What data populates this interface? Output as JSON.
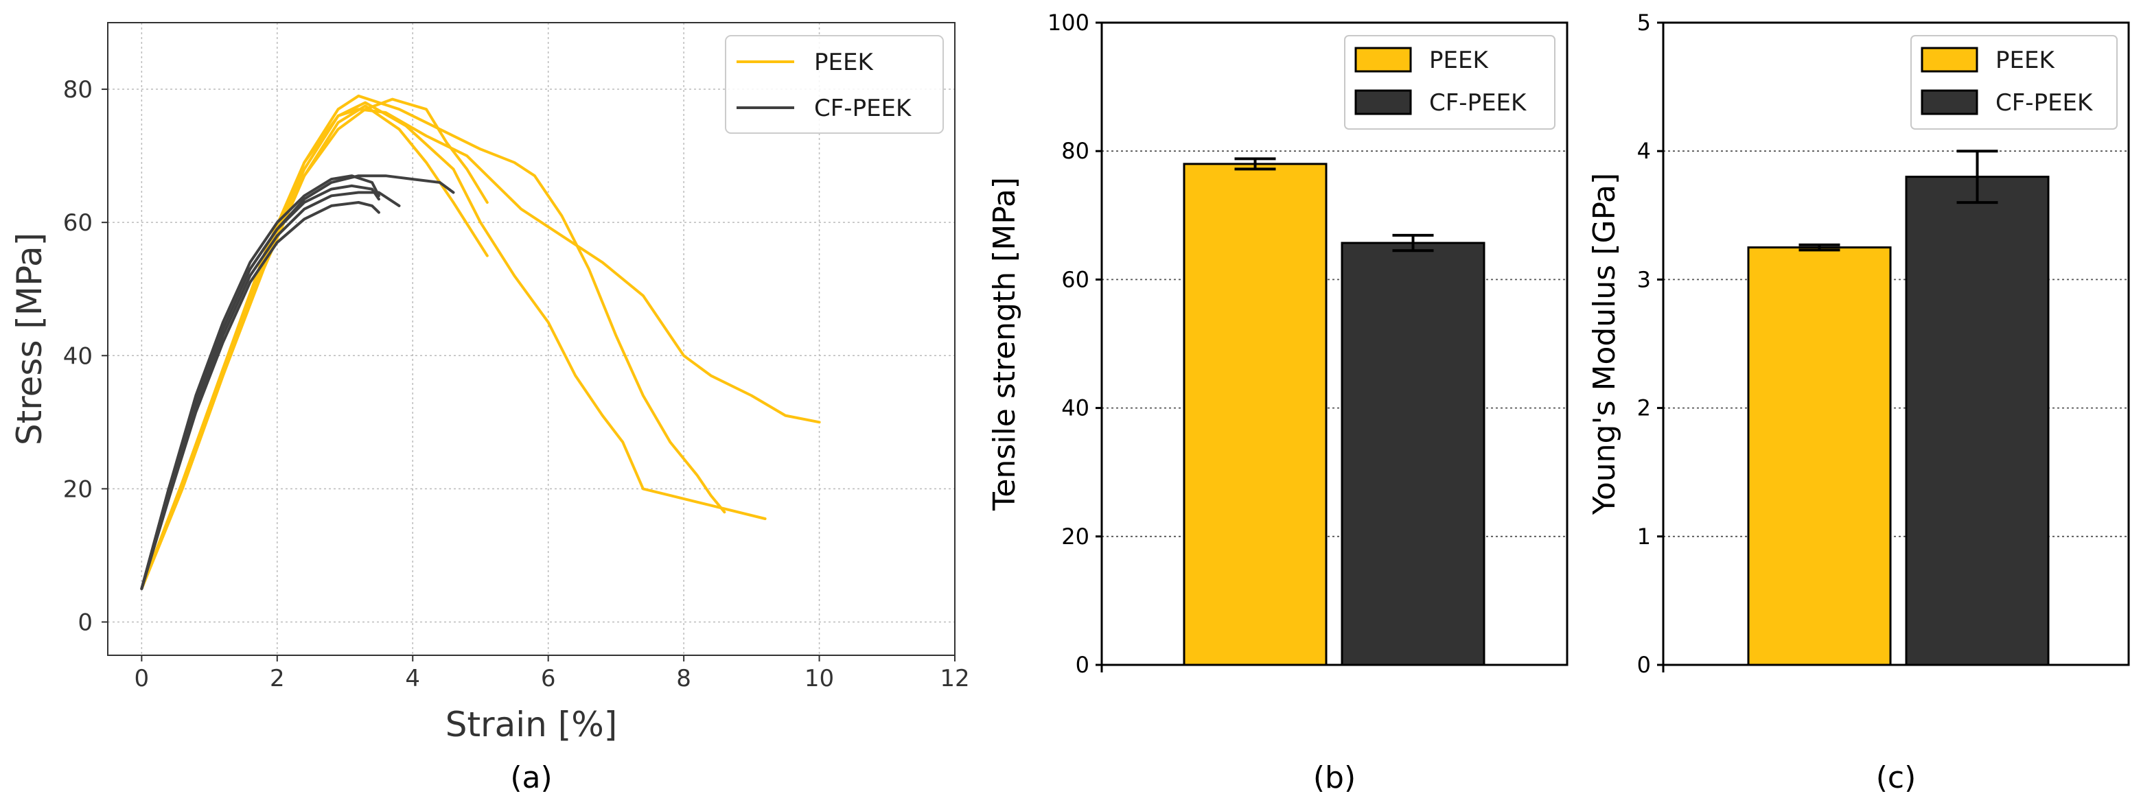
{
  "colors": {
    "peek": "#FFC20E",
    "cf_peek": "#333333",
    "cf_peek_line": "#404040",
    "grid": "#bbbbbb",
    "axis": "#333333"
  },
  "chart_data": [
    {
      "id": "a",
      "type": "line",
      "caption": "(a)",
      "xlabel": "Strain [%]",
      "ylabel": "Stress [MPa]",
      "xlim": [
        -0.5,
        12
      ],
      "ylim": [
        -5,
        90
      ],
      "xticks": [
        0,
        2,
        4,
        6,
        8,
        10,
        12
      ],
      "yticks": [
        0,
        20,
        40,
        60,
        80
      ],
      "grid": true,
      "legend_position": "top-right",
      "legend": [
        {
          "label": "PEEK",
          "color_key": "peek"
        },
        {
          "label": "CF-PEEK",
          "color_key": "cf_peek_line"
        }
      ],
      "series": [
        {
          "name": "PEEK",
          "color_key": "peek",
          "points": [
            [
              0,
              5
            ],
            [
              0.6,
              20
            ],
            [
              1.2,
              37
            ],
            [
              1.8,
              53
            ],
            [
              2.4,
              67
            ],
            [
              2.9,
              75
            ],
            [
              3.3,
              77.5
            ],
            [
              3.8,
              74
            ],
            [
              4.2,
              69
            ],
            [
              4.6,
              63
            ],
            [
              5.1,
              55
            ]
          ]
        },
        {
          "name": "PEEK",
          "color_key": "peek",
          "points": [
            [
              0,
              5
            ],
            [
              0.6,
              21
            ],
            [
              1.2,
              38
            ],
            [
              1.8,
              54
            ],
            [
              2.4,
              68
            ],
            [
              2.9,
              76
            ],
            [
              3.3,
              78
            ],
            [
              3.9,
              74.5
            ],
            [
              4.6,
              68
            ],
            [
              5.0,
              60
            ],
            [
              5.5,
              52
            ],
            [
              6.0,
              45
            ],
            [
              6.4,
              37
            ],
            [
              6.8,
              31
            ],
            [
              7.1,
              27
            ],
            [
              7.4,
              20
            ],
            [
              7.8,
              19
            ],
            [
              8.4,
              17.5
            ],
            [
              9.2,
              15.5
            ]
          ]
        },
        {
          "name": "PEEK",
          "color_key": "peek",
          "points": [
            [
              0,
              5
            ],
            [
              0.6,
              20
            ],
            [
              1.2,
              37
            ],
            [
              1.8,
              54
            ],
            [
              2.4,
              69
            ],
            [
              2.9,
              77
            ],
            [
              3.2,
              79
            ],
            [
              3.8,
              77
            ],
            [
              4.4,
              74
            ],
            [
              5.0,
              71
            ],
            [
              5.5,
              69
            ],
            [
              5.8,
              67
            ],
            [
              6.2,
              61
            ],
            [
              6.6,
              53
            ],
            [
              7.0,
              43
            ],
            [
              7.4,
              34
            ],
            [
              7.8,
              27
            ],
            [
              8.2,
              22
            ],
            [
              8.4,
              19
            ],
            [
              8.6,
              16.5
            ]
          ]
        },
        {
          "name": "PEEK",
          "color_key": "peek",
          "points": [
            [
              0,
              5
            ],
            [
              0.6,
              21
            ],
            [
              1.2,
              38
            ],
            [
              1.8,
              55
            ],
            [
              2.4,
              69
            ],
            [
              2.9,
              76
            ],
            [
              3.2,
              77
            ],
            [
              3.6,
              76.5
            ],
            [
              4.2,
              73
            ],
            [
              4.8,
              70
            ],
            [
              5.2,
              66
            ],
            [
              5.6,
              62
            ],
            [
              6.2,
              58
            ],
            [
              6.8,
              54
            ],
            [
              7.4,
              49
            ],
            [
              8.0,
              40
            ],
            [
              8.4,
              37
            ],
            [
              9.0,
              34
            ],
            [
              9.5,
              31
            ],
            [
              10.0,
              30
            ]
          ]
        },
        {
          "name": "PEEK",
          "color_key": "peek",
          "points": [
            [
              0,
              5
            ],
            [
              0.6,
              20
            ],
            [
              1.2,
              37
            ],
            [
              1.8,
              53
            ],
            [
              2.4,
              67
            ],
            [
              2.9,
              74
            ],
            [
              3.3,
              77
            ],
            [
              3.7,
              78.5
            ],
            [
              4.2,
              77
            ],
            [
              4.5,
              72
            ],
            [
              4.8,
              68
            ],
            [
              5.1,
              63
            ]
          ]
        },
        {
          "name": "CF-PEEK",
          "color_key": "cf_peek_line",
          "points": [
            [
              0,
              5
            ],
            [
              0.4,
              20
            ],
            [
              0.8,
              33
            ],
            [
              1.2,
              44
            ],
            [
              1.6,
              53
            ],
            [
              2.0,
              59
            ],
            [
              2.4,
              63.5
            ],
            [
              2.8,
              66
            ],
            [
              3.2,
              67
            ],
            [
              3.6,
              67
            ],
            [
              4.0,
              66.5
            ],
            [
              4.4,
              66
            ],
            [
              4.6,
              64.5
            ]
          ]
        },
        {
          "name": "CF-PEEK",
          "color_key": "cf_peek_line",
          "points": [
            [
              0,
              5
            ],
            [
              0.4,
              19
            ],
            [
              0.8,
              32
            ],
            [
              1.2,
              43
            ],
            [
              1.6,
              52
            ],
            [
              2.0,
              58
            ],
            [
              2.4,
              62
            ],
            [
              2.8,
              64
            ],
            [
              3.2,
              64.5
            ],
            [
              3.5,
              64.5
            ],
            [
              3.8,
              62.5
            ]
          ]
        },
        {
          "name": "CF-PEEK",
          "color_key": "cf_peek_line",
          "points": [
            [
              0,
              5
            ],
            [
              0.4,
              20
            ],
            [
              0.8,
              33
            ],
            [
              1.2,
              44
            ],
            [
              1.6,
              53
            ],
            [
              2.0,
              59
            ],
            [
              2.4,
              63
            ],
            [
              2.8,
              65
            ],
            [
              3.1,
              65.5
            ],
            [
              3.4,
              65
            ],
            [
              3.5,
              63.5
            ]
          ]
        },
        {
          "name": "CF-PEEK",
          "color_key": "cf_peek_line",
          "points": [
            [
              0,
              5
            ],
            [
              0.4,
              20
            ],
            [
              0.8,
              34
            ],
            [
              1.2,
              45
            ],
            [
              1.6,
              54
            ],
            [
              2.0,
              60
            ],
            [
              2.4,
              64
            ],
            [
              2.8,
              66.5
            ],
            [
              3.1,
              67
            ],
            [
              3.4,
              66
            ],
            [
              3.5,
              64
            ]
          ]
        },
        {
          "name": "CF-PEEK",
          "color_key": "cf_peek_line",
          "points": [
            [
              0,
              5
            ],
            [
              0.4,
              18.5
            ],
            [
              0.8,
              31.5
            ],
            [
              1.2,
              42
            ],
            [
              1.6,
              51
            ],
            [
              2.0,
              57
            ],
            [
              2.4,
              60.5
            ],
            [
              2.8,
              62.5
            ],
            [
              3.2,
              63
            ],
            [
              3.4,
              62.5
            ],
            [
              3.5,
              61.5
            ]
          ]
        }
      ]
    },
    {
      "id": "b",
      "type": "bar",
      "caption": "(b)",
      "ylabel": "Tensile strength [MPa]",
      "ylim": [
        0,
        100
      ],
      "yticks": [
        0,
        20,
        40,
        60,
        80,
        100
      ],
      "grid": true,
      "legend_position": "top-right",
      "legend": [
        {
          "label": "PEEK",
          "color_key": "peek"
        },
        {
          "label": "CF-PEEK",
          "color_key": "cf_peek"
        }
      ],
      "series": [
        {
          "name": "PEEK",
          "value": 78,
          "error": 0.8,
          "color_key": "peek"
        },
        {
          "name": "CF-PEEK",
          "value": 65.7,
          "error": 1.2,
          "color_key": "cf_peek"
        }
      ]
    },
    {
      "id": "c",
      "type": "bar",
      "caption": "(c)",
      "ylabel": "Young's Modulus [GPa]",
      "ylim": [
        0,
        5
      ],
      "yticks": [
        0,
        1,
        2,
        3,
        4,
        5
      ],
      "grid": true,
      "legend_position": "top-right",
      "legend": [
        {
          "label": "PEEK",
          "color_key": "peek"
        },
        {
          "label": "CF-PEEK",
          "color_key": "cf_peek"
        }
      ],
      "series": [
        {
          "name": "PEEK",
          "value": 3.25,
          "error": 0.02,
          "color_key": "peek"
        },
        {
          "name": "CF-PEEK",
          "value": 3.8,
          "error": 0.2,
          "color_key": "cf_peek"
        }
      ]
    }
  ]
}
